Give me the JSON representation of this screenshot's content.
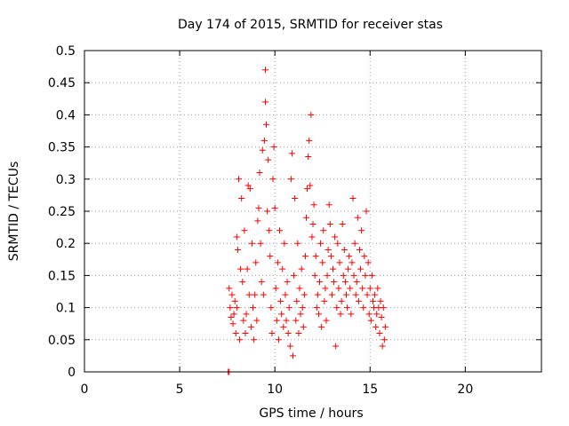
{
  "chart_data": {
    "type": "scatter",
    "title": "Day 174 of 2015, SRMTID for receiver stas",
    "xlabel": "GPS time / hours",
    "ylabel": "SRMTID / TECUs",
    "xlim": [
      0,
      24
    ],
    "ylim": [
      0,
      0.5
    ],
    "x_ticks": [
      {
        "value": 0,
        "label": "0"
      },
      {
        "value": 5,
        "label": "5"
      },
      {
        "value": 10,
        "label": "10"
      },
      {
        "value": 15,
        "label": "15"
      },
      {
        "value": 20,
        "label": "20"
      }
    ],
    "y_ticks": [
      {
        "value": 0,
        "label": "0"
      },
      {
        "value": 0.05,
        "label": "0.05"
      },
      {
        "value": 0.1,
        "label": "0.1"
      },
      {
        "value": 0.15,
        "label": "0.15"
      },
      {
        "value": 0.2,
        "label": "0.2"
      },
      {
        "value": 0.25,
        "label": "0.25"
      },
      {
        "value": 0.3,
        "label": "0.3"
      },
      {
        "value": 0.35,
        "label": "0.35"
      },
      {
        "value": 0.4,
        "label": "0.4"
      },
      {
        "value": 0.45,
        "label": "0.45"
      },
      {
        "value": 0.5,
        "label": "0.5"
      }
    ],
    "grid": true,
    "marker": "+",
    "color": "#ff0000",
    "points": [
      [
        7.55,
        0.0
      ],
      [
        7.6,
        0.0
      ],
      [
        7.6,
        0.13
      ],
      [
        7.65,
        0.1
      ],
      [
        7.7,
        0.085
      ],
      [
        7.75,
        0.12
      ],
      [
        7.8,
        0.075
      ],
      [
        7.85,
        0.09
      ],
      [
        7.9,
        0.11
      ],
      [
        7.95,
        0.06
      ],
      [
        8.0,
        0.1
      ],
      [
        8.0,
        0.21
      ],
      [
        8.05,
        0.19
      ],
      [
        8.1,
        0.3
      ],
      [
        8.15,
        0.05
      ],
      [
        8.2,
        0.16
      ],
      [
        8.25,
        0.27
      ],
      [
        8.3,
        0.14
      ],
      [
        8.35,
        0.08
      ],
      [
        8.4,
        0.22
      ],
      [
        8.45,
        0.06
      ],
      [
        8.5,
        0.09
      ],
      [
        8.55,
        0.16
      ],
      [
        8.6,
        0.29
      ],
      [
        8.65,
        0.12
      ],
      [
        8.7,
        0.285
      ],
      [
        8.75,
        0.07
      ],
      [
        8.8,
        0.2
      ],
      [
        8.85,
        0.1
      ],
      [
        8.9,
        0.05
      ],
      [
        8.95,
        0.12
      ],
      [
        9.0,
        0.17
      ],
      [
        9.05,
        0.08
      ],
      [
        9.1,
        0.235
      ],
      [
        9.15,
        0.255
      ],
      [
        9.2,
        0.31
      ],
      [
        9.25,
        0.2
      ],
      [
        9.3,
        0.14
      ],
      [
        9.35,
        0.345
      ],
      [
        9.4,
        0.12
      ],
      [
        9.45,
        0.36
      ],
      [
        9.5,
        0.47
      ],
      [
        9.5,
        0.42
      ],
      [
        9.55,
        0.385
      ],
      [
        9.6,
        0.25
      ],
      [
        9.65,
        0.33
      ],
      [
        9.7,
        0.22
      ],
      [
        9.75,
        0.18
      ],
      [
        9.8,
        0.1
      ],
      [
        9.85,
        0.06
      ],
      [
        9.9,
        0.3
      ],
      [
        9.95,
        0.35
      ],
      [
        10.0,
        0.255
      ],
      [
        10.05,
        0.13
      ],
      [
        10.1,
        0.08
      ],
      [
        10.15,
        0.17
      ],
      [
        10.2,
        0.05
      ],
      [
        10.25,
        0.22
      ],
      [
        10.3,
        0.11
      ],
      [
        10.35,
        0.09
      ],
      [
        10.4,
        0.16
      ],
      [
        10.45,
        0.07
      ],
      [
        10.5,
        0.2
      ],
      [
        10.55,
        0.12
      ],
      [
        10.6,
        0.08
      ],
      [
        10.65,
        0.14
      ],
      [
        10.7,
        0.06
      ],
      [
        10.75,
        0.1
      ],
      [
        10.8,
        0.04
      ],
      [
        10.85,
        0.3
      ],
      [
        10.9,
        0.34
      ],
      [
        10.95,
        0.025
      ],
      [
        11.0,
        0.15
      ],
      [
        11.05,
        0.27
      ],
      [
        11.1,
        0.08
      ],
      [
        11.15,
        0.11
      ],
      [
        11.2,
        0.2
      ],
      [
        11.25,
        0.06
      ],
      [
        11.3,
        0.13
      ],
      [
        11.35,
        0.09
      ],
      [
        11.4,
        0.16
      ],
      [
        11.45,
        0.1
      ],
      [
        11.5,
        0.07
      ],
      [
        11.55,
        0.12
      ],
      [
        11.6,
        0.18
      ],
      [
        11.65,
        0.24
      ],
      [
        11.7,
        0.285
      ],
      [
        11.75,
        0.335
      ],
      [
        11.8,
        0.36
      ],
      [
        11.85,
        0.29
      ],
      [
        11.9,
        0.4
      ],
      [
        11.95,
        0.21
      ],
      [
        12.0,
        0.23
      ],
      [
        12.05,
        0.26
      ],
      [
        12.1,
        0.15
      ],
      [
        12.15,
        0.18
      ],
      [
        12.2,
        0.1
      ],
      [
        12.25,
        0.12
      ],
      [
        12.3,
        0.09
      ],
      [
        12.35,
        0.14
      ],
      [
        12.4,
        0.2
      ],
      [
        12.45,
        0.07
      ],
      [
        12.5,
        0.17
      ],
      [
        12.55,
        0.22
      ],
      [
        12.6,
        0.11
      ],
      [
        12.65,
        0.13
      ],
      [
        12.7,
        0.08
      ],
      [
        12.75,
        0.15
      ],
      [
        12.8,
        0.19
      ],
      [
        12.85,
        0.26
      ],
      [
        12.9,
        0.23
      ],
      [
        12.95,
        0.18
      ],
      [
        13.0,
        0.12
      ],
      [
        13.05,
        0.16
      ],
      [
        13.1,
        0.14
      ],
      [
        13.15,
        0.21
      ],
      [
        13.2,
        0.04
      ],
      [
        13.25,
        0.1
      ],
      [
        13.3,
        0.2
      ],
      [
        13.35,
        0.13
      ],
      [
        13.4,
        0.17
      ],
      [
        13.45,
        0.09
      ],
      [
        13.5,
        0.11
      ],
      [
        13.55,
        0.23
      ],
      [
        13.6,
        0.15
      ],
      [
        13.65,
        0.19
      ],
      [
        13.7,
        0.14
      ],
      [
        13.75,
        0.12
      ],
      [
        13.8,
        0.1
      ],
      [
        13.85,
        0.16
      ],
      [
        13.9,
        0.18
      ],
      [
        13.95,
        0.13
      ],
      [
        14.0,
        0.09
      ],
      [
        14.05,
        0.17
      ],
      [
        14.1,
        0.27
      ],
      [
        14.15,
        0.15
      ],
      [
        14.2,
        0.2
      ],
      [
        14.25,
        0.12
      ],
      [
        14.3,
        0.14
      ],
      [
        14.35,
        0.24
      ],
      [
        14.4,
        0.11
      ],
      [
        14.45,
        0.19
      ],
      [
        14.5,
        0.16
      ],
      [
        14.55,
        0.22
      ],
      [
        14.6,
        0.13
      ],
      [
        14.65,
        0.1
      ],
      [
        14.7,
        0.18
      ],
      [
        14.75,
        0.15
      ],
      [
        14.8,
        0.25
      ],
      [
        14.85,
        0.12
      ],
      [
        14.9,
        0.17
      ],
      [
        14.95,
        0.09
      ],
      [
        15.0,
        0.13
      ],
      [
        15.05,
        0.08
      ],
      [
        15.1,
        0.15
      ],
      [
        15.15,
        0.11
      ],
      [
        15.2,
        0.1
      ],
      [
        15.25,
        0.12
      ],
      [
        15.3,
        0.07
      ],
      [
        15.35,
        0.09
      ],
      [
        15.4,
        0.13
      ],
      [
        15.45,
        0.1
      ],
      [
        15.5,
        0.06
      ],
      [
        15.55,
        0.11
      ],
      [
        15.6,
        0.085
      ],
      [
        15.65,
        0.04
      ],
      [
        15.7,
        0.1
      ],
      [
        15.75,
        0.05
      ],
      [
        15.8,
        0.07
      ]
    ]
  }
}
